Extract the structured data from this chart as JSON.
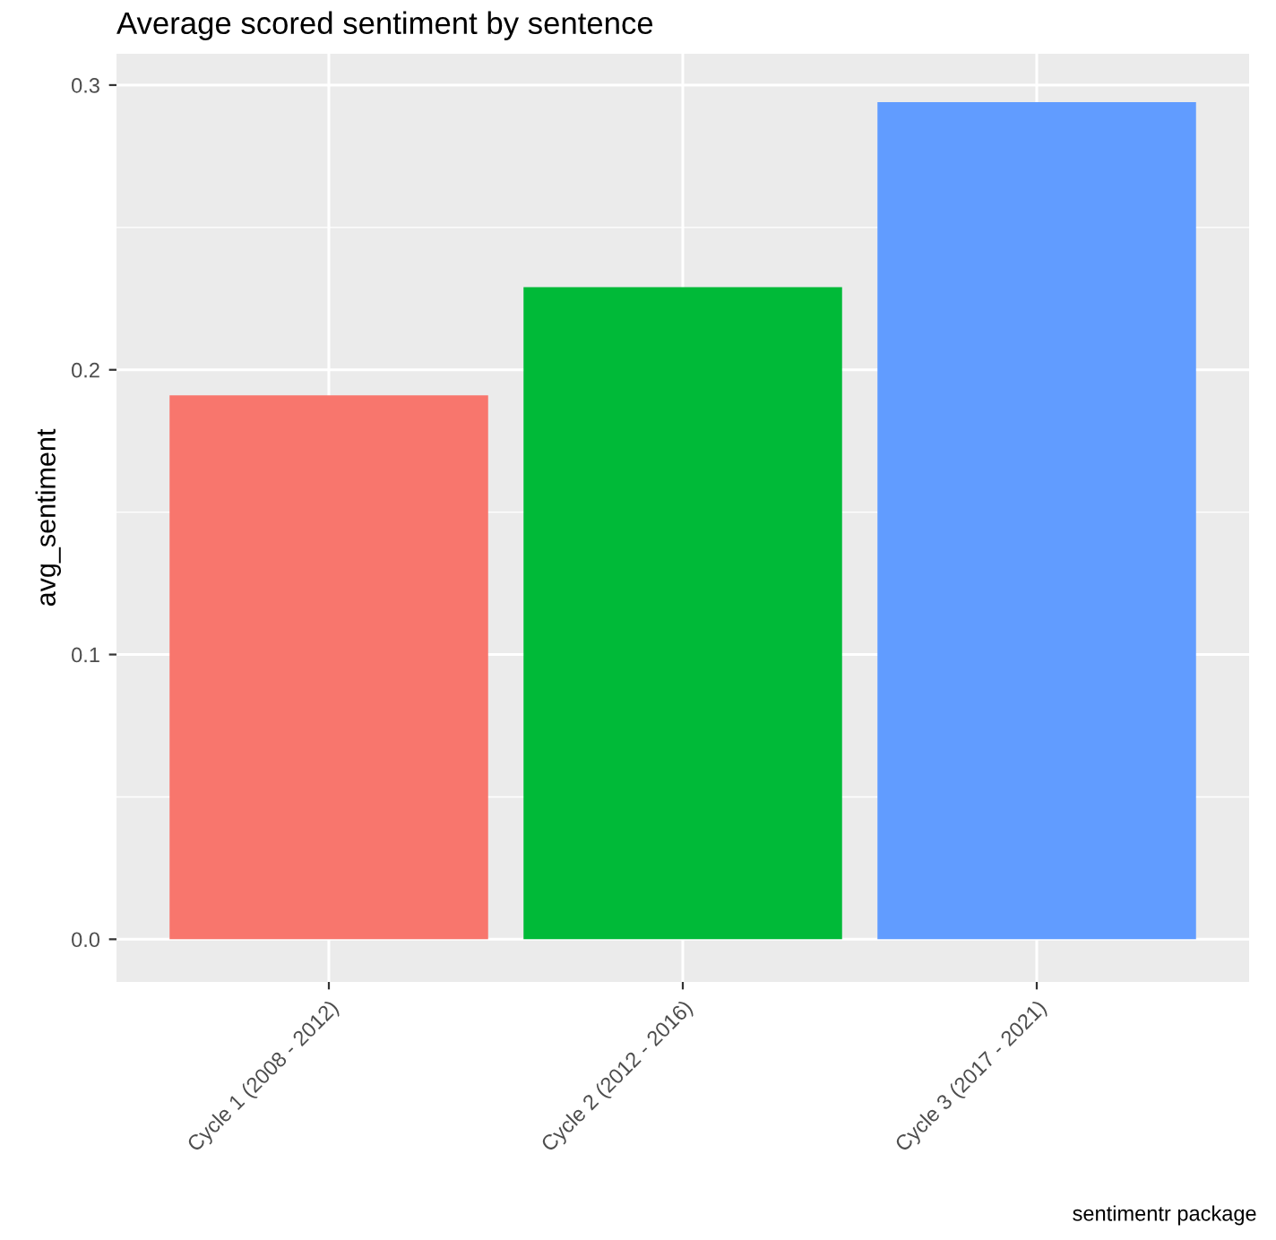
{
  "chart_data": {
    "type": "bar",
    "title": "Average scored sentiment by sentence",
    "ylabel": "avg_sentiment",
    "categories": [
      "Cycle 1 (2008 - 2012)",
      "Cycle 2 (2012 - 2016)",
      "Cycle 3 (2017 - 2021)"
    ],
    "values": [
      0.191,
      0.229,
      0.294
    ],
    "colors": [
      "#f8766d",
      "#00ba38",
      "#619cff"
    ],
    "ylim": [
      -0.015,
      0.311
    ],
    "yticks": [
      {
        "value": 0,
        "label": "0.0"
      },
      0.1,
      0.2,
      0.3
    ],
    "grid": true,
    "legend": false,
    "annotations": [
      "sentimentr package"
    ]
  }
}
